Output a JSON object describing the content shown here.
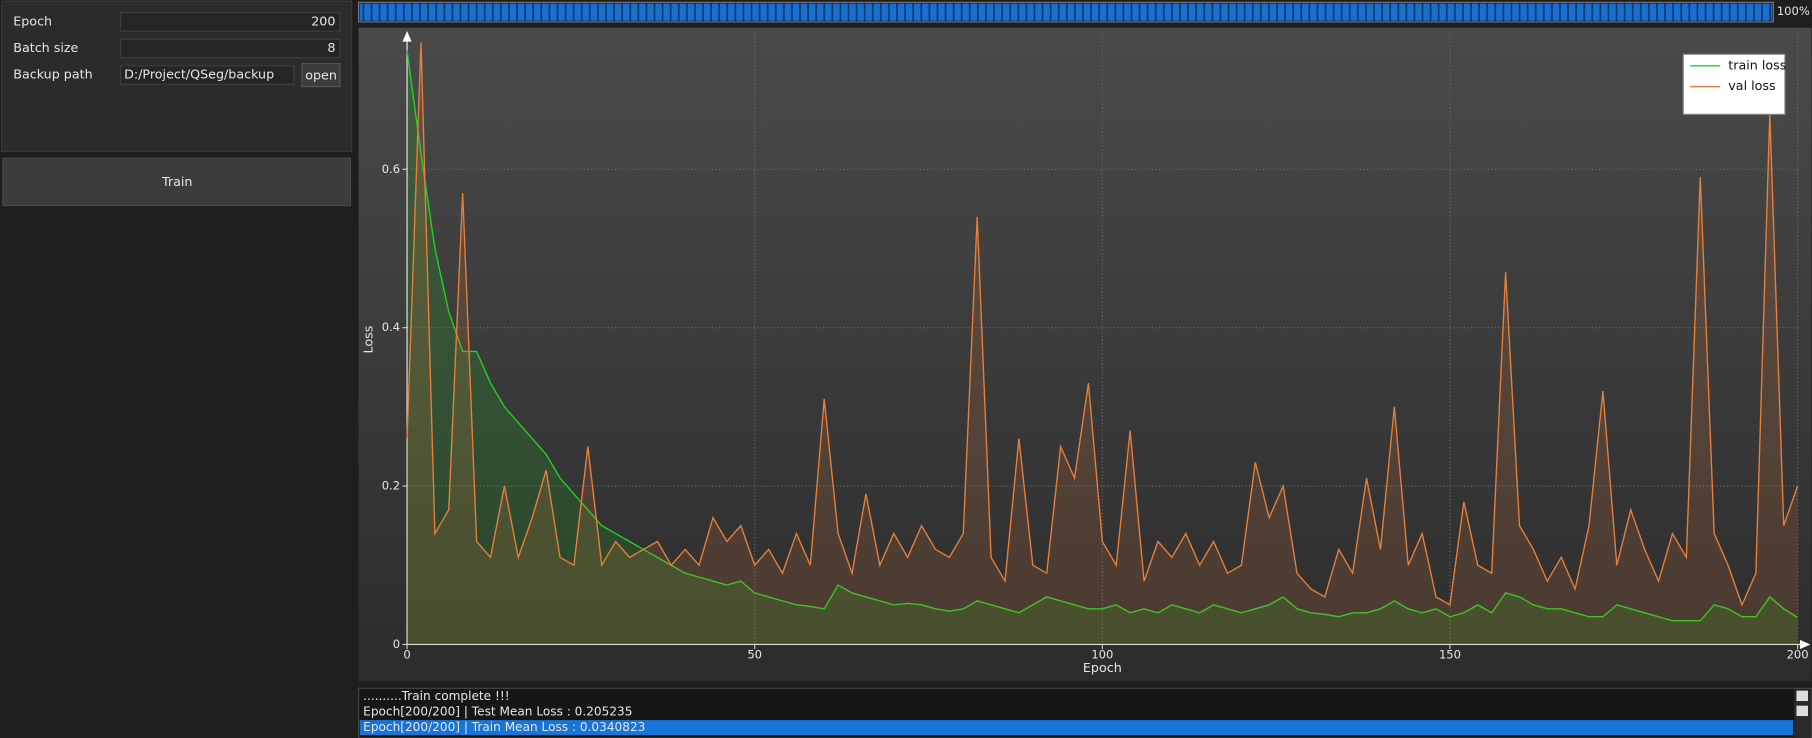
{
  "form": {
    "fields": [
      {
        "label": "Epoch",
        "value": "200"
      },
      {
        "label": "Batch size",
        "value": "8"
      },
      {
        "label": "Backup path",
        "value": "D:/Project/QSeg/backup"
      }
    ],
    "open_button": "open",
    "train_button": "Train"
  },
  "progress": {
    "value": 100,
    "label": "100%"
  },
  "chart_data": {
    "type": "line",
    "xlabel": "Epoch",
    "ylabel": "Loss",
    "x": [
      0,
      2,
      4,
      6,
      8,
      10,
      12,
      14,
      16,
      18,
      20,
      22,
      24,
      26,
      28,
      30,
      32,
      34,
      36,
      38,
      40,
      42,
      44,
      46,
      48,
      50,
      52,
      54,
      56,
      58,
      60,
      62,
      64,
      66,
      68,
      70,
      72,
      74,
      76,
      78,
      80,
      82,
      84,
      86,
      88,
      90,
      92,
      94,
      96,
      98,
      100,
      102,
      104,
      106,
      108,
      110,
      112,
      114,
      116,
      118,
      120,
      122,
      124,
      126,
      128,
      130,
      132,
      134,
      136,
      138,
      140,
      142,
      144,
      146,
      148,
      150,
      152,
      154,
      156,
      158,
      160,
      162,
      164,
      166,
      168,
      170,
      172,
      174,
      176,
      178,
      180,
      182,
      184,
      186,
      188,
      190,
      192,
      194,
      196,
      198,
      200
    ],
    "series": [
      {
        "name": "train loss",
        "color": "#22d022",
        "values": [
          0.75,
          0.62,
          0.5,
          0.42,
          0.37,
          0.37,
          0.33,
          0.3,
          0.28,
          0.26,
          0.24,
          0.21,
          0.19,
          0.17,
          0.15,
          0.14,
          0.13,
          0.12,
          0.11,
          0.1,
          0.09,
          0.085,
          0.08,
          0.075,
          0.08,
          0.065,
          0.06,
          0.055,
          0.05,
          0.048,
          0.045,
          0.075,
          0.065,
          0.06,
          0.055,
          0.05,
          0.052,
          0.05,
          0.045,
          0.042,
          0.045,
          0.055,
          0.05,
          0.045,
          0.04,
          0.05,
          0.06,
          0.055,
          0.05,
          0.045,
          0.045,
          0.05,
          0.04,
          0.045,
          0.04,
          0.05,
          0.045,
          0.04,
          0.05,
          0.045,
          0.04,
          0.045,
          0.05,
          0.06,
          0.045,
          0.04,
          0.038,
          0.035,
          0.04,
          0.04,
          0.045,
          0.055,
          0.045,
          0.04,
          0.045,
          0.035,
          0.04,
          0.05,
          0.04,
          0.065,
          0.06,
          0.05,
          0.045,
          0.045,
          0.04,
          0.035,
          0.035,
          0.05,
          0.045,
          0.04,
          0.035,
          0.03,
          0.03,
          0.03,
          0.05,
          0.045,
          0.035,
          0.035,
          0.06,
          0.045,
          0.034
        ]
      },
      {
        "name": "val loss",
        "color": "#e47f3c",
        "values": [
          0.26,
          0.76,
          0.14,
          0.17,
          0.57,
          0.13,
          0.11,
          0.2,
          0.11,
          0.16,
          0.22,
          0.11,
          0.1,
          0.25,
          0.1,
          0.13,
          0.11,
          0.12,
          0.13,
          0.1,
          0.12,
          0.1,
          0.16,
          0.13,
          0.15,
          0.1,
          0.12,
          0.09,
          0.14,
          0.1,
          0.31,
          0.14,
          0.09,
          0.19,
          0.1,
          0.14,
          0.11,
          0.15,
          0.12,
          0.11,
          0.14,
          0.54,
          0.11,
          0.08,
          0.26,
          0.1,
          0.09,
          0.25,
          0.21,
          0.33,
          0.13,
          0.1,
          0.27,
          0.08,
          0.13,
          0.11,
          0.14,
          0.1,
          0.13,
          0.09,
          0.1,
          0.23,
          0.16,
          0.2,
          0.09,
          0.07,
          0.06,
          0.12,
          0.09,
          0.21,
          0.12,
          0.3,
          0.1,
          0.14,
          0.06,
          0.05,
          0.18,
          0.1,
          0.09,
          0.47,
          0.15,
          0.12,
          0.08,
          0.11,
          0.07,
          0.15,
          0.32,
          0.1,
          0.17,
          0.12,
          0.08,
          0.14,
          0.11,
          0.59,
          0.14,
          0.1,
          0.05,
          0.09,
          0.67,
          0.15,
          0.2
        ]
      }
    ],
    "xlim": [
      0,
      200
    ],
    "xticks": [
      0,
      50,
      100,
      150,
      200
    ],
    "ylim": [
      0,
      0.77
    ],
    "yticks": [
      0,
      0.2,
      0.4,
      0.6
    ],
    "grid": true,
    "legend": "upper right"
  },
  "log": {
    "lines": [
      "..........Train complete !!!",
      "Epoch[200/200] | Test Mean Loss : 0.205235",
      "Epoch[200/200] | Train Mean Loss : 0.0340823"
    ],
    "selected": 2
  }
}
